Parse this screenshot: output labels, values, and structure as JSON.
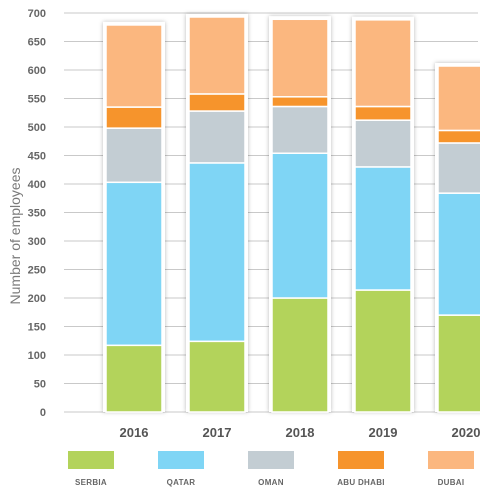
{
  "chart_data": {
    "type": "bar",
    "stacked": true,
    "categories": [
      "2016",
      "2017",
      "2018",
      "2019",
      "2020"
    ],
    "series": [
      {
        "name": "SERBIA",
        "color": "#b3d35b",
        "values": [
          117,
          124,
          200,
          214,
          170
        ]
      },
      {
        "name": "QATAR",
        "color": "#7fd5f5",
        "values": [
          286,
          313,
          254,
          216,
          214
        ]
      },
      {
        "name": "OMAN",
        "color": "#c3cdd3",
        "values": [
          95,
          91,
          82,
          82,
          88
        ]
      },
      {
        "name": "ABU DHABI",
        "color": "#f6942c",
        "values": [
          37,
          30,
          17,
          24,
          22
        ]
      },
      {
        "name": "DUBAI",
        "color": "#fbb77f",
        "values": [
          144,
          135,
          136,
          152,
          113
        ]
      }
    ],
    "ylabel": "Number of employees",
    "xlabel": "",
    "ylim": [
      0,
      700
    ],
    "yticks": [
      0,
      50,
      100,
      150,
      200,
      250,
      300,
      350,
      400,
      450,
      500,
      550,
      600,
      650,
      700
    ],
    "grid": true,
    "legend": "bottom"
  }
}
